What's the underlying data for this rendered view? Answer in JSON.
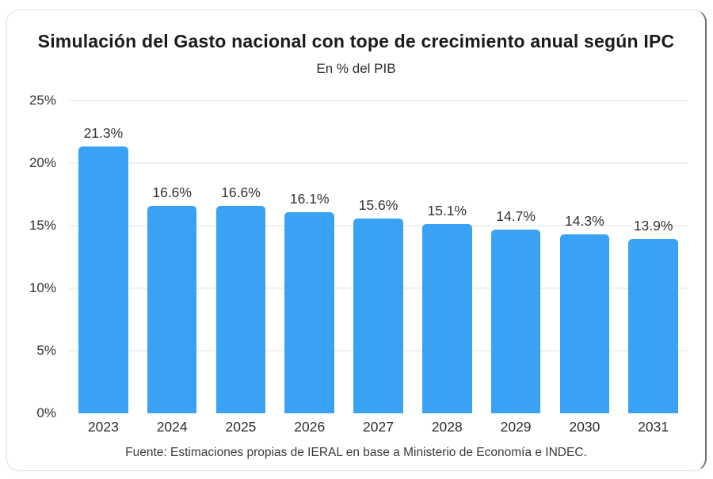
{
  "chart_data": {
    "type": "bar",
    "title": "Simulación del Gasto nacional con tope de crecimiento anual según IPC",
    "subtitle": "En % del PIB",
    "categories": [
      "2023",
      "2024",
      "2025",
      "2026",
      "2027",
      "2028",
      "2029",
      "2030",
      "2031"
    ],
    "values": [
      21.3,
      16.6,
      16.6,
      16.1,
      15.6,
      15.1,
      14.7,
      14.3,
      13.9
    ],
    "value_labels": [
      "21.3%",
      "16.6%",
      "16.6%",
      "16.1%",
      "15.6%",
      "15.1%",
      "14.7%",
      "14.3%",
      "13.9%"
    ],
    "xlabel": "",
    "ylabel": "",
    "ylim": [
      0,
      25
    ],
    "y_ticks": [
      0,
      5,
      10,
      15,
      20,
      25
    ],
    "y_tick_labels": [
      "0%",
      "5%",
      "10%",
      "15%",
      "20%",
      "25%"
    ],
    "grid": "horizontal",
    "legend": "none",
    "bar_color": "#3aa2f4",
    "source": "Fuente: Estimaciones propias de IERAL en base a Ministerio de Economía e INDEC."
  }
}
